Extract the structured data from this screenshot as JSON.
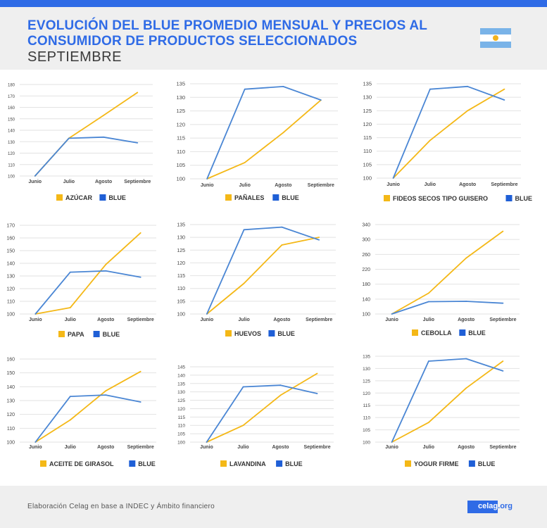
{
  "header": {
    "title_line1": "EVOLUCIÓN DEL BLUE PROMEDIO MENSUAL Y PRECIOS AL",
    "title_line2": "CONSUMIDOR DE PRODUCTOS SELECCIONADOS",
    "subtitle": "SEPTIEMBRE"
  },
  "colors": {
    "blue": "#4a86d4",
    "yellow": "#f4b817",
    "accent": "#2f6be6",
    "legend_blue": "#1f5fd6"
  },
  "chart_data": [
    {
      "type": "line",
      "categories": [
        "Junio",
        "Julio",
        "Agosto",
        "Septiembre"
      ],
      "ylim": [
        100,
        180
      ],
      "yticks": [
        100,
        110,
        120,
        130,
        140,
        150,
        160,
        170,
        180
      ],
      "series": [
        {
          "name": "AZÚCAR",
          "values": [
            100,
            133,
            153,
            173
          ]
        },
        {
          "name": "BLUE",
          "values": [
            100,
            133,
            134,
            129
          ]
        }
      ]
    },
    {
      "type": "line",
      "categories": [
        "Junio",
        "Julio",
        "Agosto",
        "Septiembre"
      ],
      "ylim": [
        100,
        135
      ],
      "yticks": [
        100,
        105,
        110,
        115,
        120,
        125,
        130,
        135
      ],
      "series": [
        {
          "name": "PAÑALES",
          "values": [
            100,
            106,
            117,
            129
          ]
        },
        {
          "name": "BLUE",
          "values": [
            100,
            133,
            134,
            129
          ]
        }
      ]
    },
    {
      "type": "line",
      "categories": [
        "Junio",
        "Julio",
        "Agosto",
        "Septiembre"
      ],
      "ylim": [
        100,
        135
      ],
      "yticks": [
        100,
        105,
        110,
        115,
        120,
        125,
        130,
        135
      ],
      "series": [
        {
          "name": "FIDEOS SECOS TIPO GUISERO",
          "values": [
            100,
            114,
            125,
            133
          ]
        },
        {
          "name": "BLUE",
          "values": [
            100,
            133,
            134,
            129
          ]
        }
      ]
    },
    {
      "type": "line",
      "categories": [
        "Junio",
        "Julio",
        "Agosto",
        "Septiembre"
      ],
      "ylim": [
        100,
        170
      ],
      "yticks": [
        100,
        110,
        120,
        130,
        140,
        150,
        160,
        170
      ],
      "series": [
        {
          "name": "PAPA",
          "values": [
            100,
            105,
            139,
            164
          ]
        },
        {
          "name": "BLUE",
          "values": [
            100,
            133,
            134,
            129
          ]
        }
      ]
    },
    {
      "type": "line",
      "categories": [
        "Junio",
        "Julio",
        "Agosto",
        "Septiembre"
      ],
      "ylim": [
        100,
        135
      ],
      "yticks": [
        100,
        105,
        110,
        115,
        120,
        125,
        130,
        135
      ],
      "series": [
        {
          "name": "HUEVOS",
          "values": [
            100,
            112,
            127,
            130
          ]
        },
        {
          "name": "BLUE",
          "values": [
            100,
            133,
            134,
            129
          ]
        }
      ]
    },
    {
      "type": "line",
      "categories": [
        "Junio",
        "Julio",
        "Agosto",
        "Septiembre"
      ],
      "ylim": [
        100,
        340
      ],
      "yticks": [
        100,
        140,
        180,
        220,
        260,
        300,
        340
      ],
      "series": [
        {
          "name": "CEBOLLA",
          "values": [
            100,
            156,
            250,
            322
          ]
        },
        {
          "name": "BLUE",
          "values": [
            100,
            133,
            134,
            129
          ]
        }
      ]
    },
    {
      "type": "line",
      "categories": [
        "Junio",
        "Julio",
        "Agosto",
        "Septiembre"
      ],
      "ylim": [
        100,
        160
      ],
      "yticks": [
        100,
        110,
        120,
        130,
        140,
        150,
        160
      ],
      "series": [
        {
          "name": "ACEITE DE GIRASOL",
          "values": [
            100,
            116,
            137,
            151
          ]
        },
        {
          "name": "BLUE",
          "values": [
            100,
            133,
            134,
            129
          ]
        }
      ]
    },
    {
      "type": "line",
      "categories": [
        "Junio",
        "Julio",
        "Agosto",
        "Septiembre"
      ],
      "ylim": [
        100,
        145
      ],
      "yticks": [
        100,
        105,
        110,
        115,
        120,
        125,
        130,
        135,
        140,
        145
      ],
      "series": [
        {
          "name": "LAVANDINA",
          "values": [
            100,
            110,
            128,
            141
          ]
        },
        {
          "name": "BLUE",
          "values": [
            100,
            133,
            134,
            129
          ]
        }
      ]
    },
    {
      "type": "line",
      "categories": [
        "Junio",
        "Julio",
        "Agosto",
        "Septiembre"
      ],
      "ylim": [
        100,
        135
      ],
      "yticks": [
        100,
        105,
        110,
        115,
        120,
        125,
        130,
        135
      ],
      "series": [
        {
          "name": "YOGUR FIRME",
          "values": [
            100,
            108,
            122,
            133
          ]
        },
        {
          "name": "BLUE",
          "values": [
            100,
            133,
            134,
            129
          ]
        }
      ]
    }
  ],
  "footer": {
    "source": "Elaboración Celag en base a INDEC y Ámbito financiero",
    "logo_main": "celag",
    "logo_suffix": ".org"
  }
}
